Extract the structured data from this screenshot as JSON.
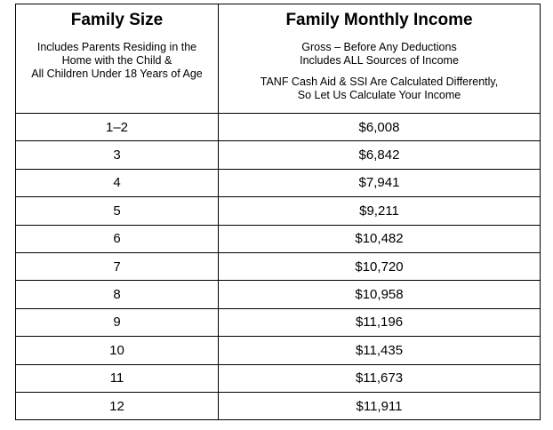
{
  "table": {
    "header": [
      {
        "title": "Family Size",
        "paragraphs": [
          [
            "Includes Parents Residing in the",
            "Home with the Child &",
            "All Children Under 18 Years of Age"
          ]
        ]
      },
      {
        "title": "Family Monthly Income",
        "paragraphs": [
          [
            "Gross – Before Any Deductions",
            "Includes ALL Sources of Income"
          ],
          [
            "TANF Cash Aid & SSI Are Calculated Differently,",
            "So Let Us Calculate Your Income"
          ]
        ]
      }
    ],
    "rows": [
      [
        "1–2",
        "$6,008"
      ],
      [
        "3",
        "$6,842"
      ],
      [
        "4",
        "$7,941"
      ],
      [
        "5",
        "$9,211"
      ],
      [
        "6",
        "$10,482"
      ],
      [
        "7",
        "$10,720"
      ],
      [
        "8",
        "$10,958"
      ],
      [
        "9",
        "$11,196"
      ],
      [
        "10",
        "$11,435"
      ],
      [
        "11",
        "$11,673"
      ],
      [
        "12",
        "$11,911"
      ]
    ]
  }
}
